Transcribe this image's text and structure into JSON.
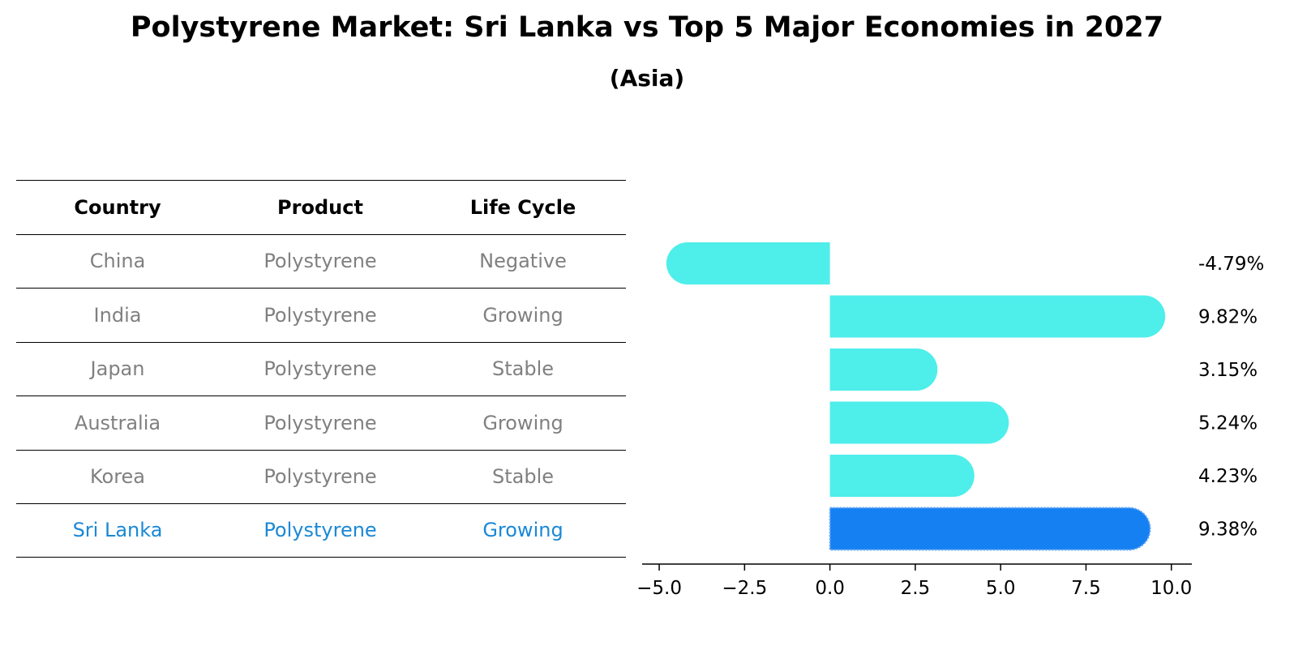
{
  "title": "Polystyrene Market: Sri Lanka vs Top 5 Major Economies in 2027",
  "subtitle": "(Asia)",
  "table": {
    "headers": [
      "Country",
      "Product",
      "Life Cycle"
    ],
    "rows": [
      {
        "country": "China",
        "product": "Polystyrene",
        "life_cycle": "Negative"
      },
      {
        "country": "India",
        "product": "Polystyrene",
        "life_cycle": "Growing"
      },
      {
        "country": "Japan",
        "product": "Polystyrene",
        "life_cycle": "Stable"
      },
      {
        "country": "Australia",
        "product": "Polystyrene",
        "life_cycle": "Growing"
      },
      {
        "country": "Korea",
        "product": "Polystyrene",
        "life_cycle": "Stable"
      },
      {
        "country": "Sri Lanka",
        "product": "Polystyrene",
        "life_cycle": "Growing"
      }
    ]
  },
  "colors": {
    "bar": "#4eeeea",
    "highlight_bar": "#1580f2",
    "gray_text": "#808080",
    "highlight_text": "#1a88d6"
  },
  "chart_data": {
    "type": "bar",
    "orientation": "horizontal",
    "categories": [
      "China",
      "India",
      "Japan",
      "Australia",
      "Korea",
      "Sri Lanka"
    ],
    "values": [
      -4.79,
      9.82,
      3.15,
      5.24,
      4.23,
      9.38
    ],
    "labels": [
      "-4.79%",
      "9.82%",
      "3.15%",
      "5.24%",
      "4.23%",
      "9.38%"
    ],
    "highlight": "Sri Lanka",
    "xlim": [
      -5.5,
      10.6
    ],
    "xticks": [
      -5.0,
      -2.5,
      0.0,
      2.5,
      5.0,
      7.5,
      10.0
    ],
    "xtick_labels": [
      "−5.0",
      "−2.5",
      "0.0",
      "2.5",
      "5.0",
      "7.5",
      "10.0"
    ],
    "xlabel": "",
    "ylabel": ""
  }
}
